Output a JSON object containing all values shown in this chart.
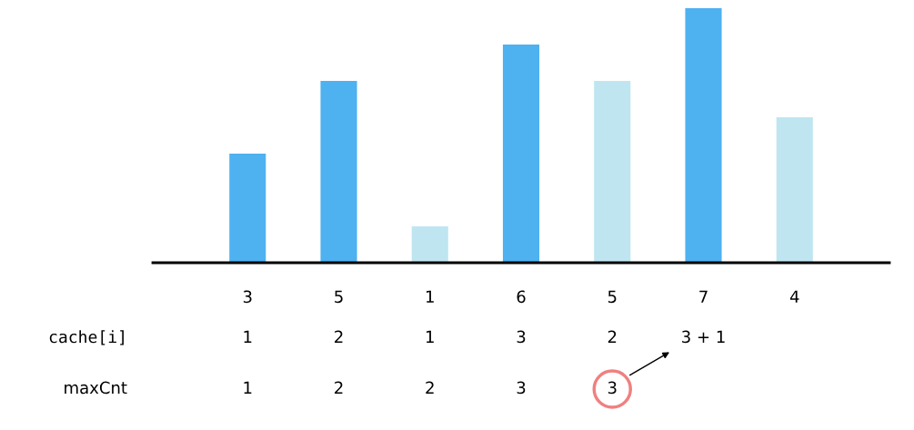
{
  "chart_data": {
    "type": "bar",
    "categories": [
      null,
      null,
      null,
      null,
      null,
      null,
      null
    ],
    "values": [
      3,
      5,
      1,
      6,
      5,
      7,
      4
    ],
    "colors": [
      "#4eb1f0",
      "#4eb1f0",
      "#bfe6f0",
      "#4eb1f0",
      "#bfe6f0",
      "#4eb1f0",
      "#bfe6f0"
    ],
    "ylim": [
      0,
      7
    ],
    "data_labels": true,
    "annotations": [
      "cache[i]",
      "1",
      "2",
      "1",
      "3",
      "2",
      "3 + 1",
      "maxCnt",
      "1",
      "2",
      "2",
      "3",
      "3"
    ]
  }
}
